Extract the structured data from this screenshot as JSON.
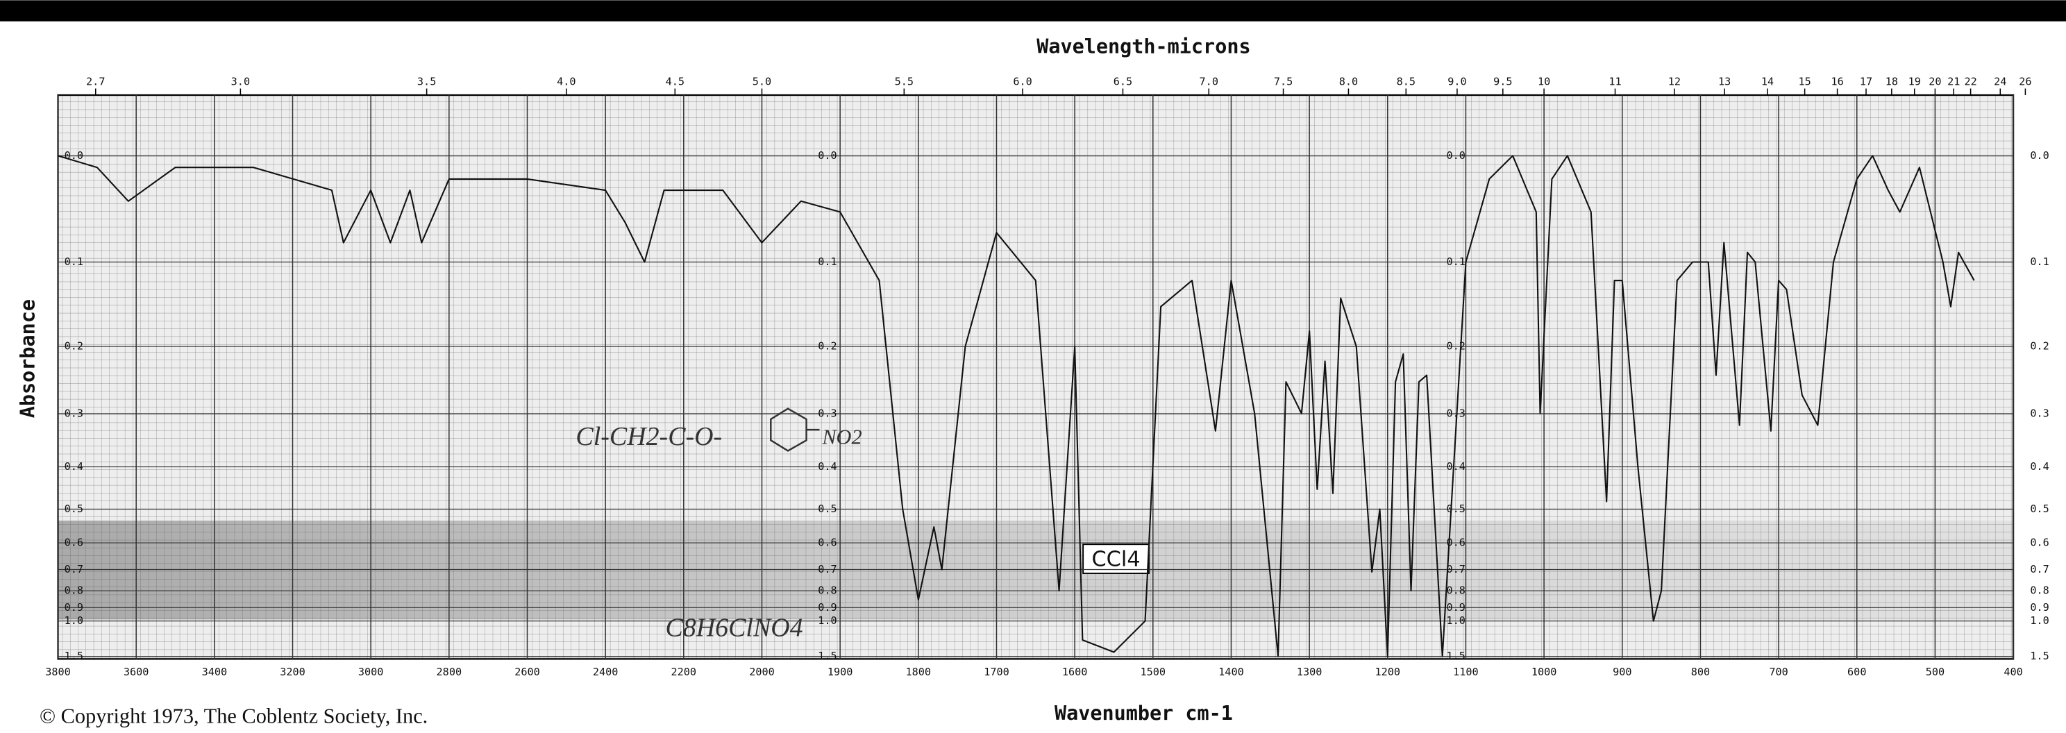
{
  "chart_data": {
    "type": "line",
    "title": "Wavelength-microns",
    "x_label": "Wavenumber cm-1",
    "y_label": "Absorbance",
    "copyright": "© Copyright 1973, The Coblentz Society, Inc.",
    "annotations": [
      "CCl4",
      "C8H6ClNO4",
      "Cl-CH2-C-O-",
      "NO2"
    ],
    "color": "#111111",
    "x": [
      3800,
      3700,
      3620,
      3500,
      3300,
      3100,
      3070,
      3000,
      2950,
      2900,
      2870,
      2800,
      2600,
      2400,
      2350,
      2300,
      2250,
      2100,
      2000,
      1950,
      1900,
      1850,
      1820,
      1800,
      1780,
      1770,
      1740,
      1700,
      1650,
      1620,
      1600,
      1590,
      1550,
      1510,
      1490,
      1450,
      1420,
      1400,
      1370,
      1340,
      1330,
      1310,
      1300,
      1290,
      1280,
      1270,
      1260,
      1240,
      1220,
      1210,
      1200,
      1190,
      1180,
      1170,
      1160,
      1150,
      1130,
      1100,
      1070,
      1040,
      1010,
      1005,
      990,
      970,
      940,
      920,
      910,
      900,
      880,
      860,
      850,
      830,
      810,
      790,
      780,
      770,
      750,
      740,
      730,
      710,
      700,
      690,
      670,
      650,
      630,
      600,
      580,
      560,
      545,
      520,
      490,
      480,
      470,
      450
    ],
    "values": [
      0.0,
      0.01,
      0.04,
      0.01,
      0.01,
      0.03,
      0.08,
      0.03,
      0.08,
      0.03,
      0.08,
      0.02,
      0.02,
      0.03,
      0.06,
      0.1,
      0.03,
      0.03,
      0.08,
      0.04,
      0.05,
      0.12,
      0.5,
      0.85,
      0.55,
      0.7,
      0.2,
      0.07,
      0.12,
      0.8,
      0.2,
      1.2,
      1.4,
      1.0,
      0.15,
      0.12,
      0.33,
      0.12,
      0.3,
      1.5,
      0.25,
      0.3,
      0.18,
      0.45,
      0.22,
      0.46,
      0.14,
      0.2,
      0.71,
      0.5,
      1.5,
      0.25,
      0.21,
      0.8,
      0.25,
      0.24,
      1.5,
      0.1,
      0.02,
      0.0,
      0.05,
      0.3,
      0.02,
      0.0,
      0.05,
      0.48,
      0.12,
      0.12,
      0.4,
      1.0,
      0.8,
      0.12,
      0.1,
      0.1,
      0.24,
      0.08,
      0.32,
      0.09,
      0.1,
      0.33,
      0.12,
      0.13,
      0.27,
      0.32,
      0.1,
      0.02,
      0.0,
      0.03,
      0.05,
      0.01,
      0.1,
      0.15,
      0.09,
      0.12
    ],
    "xlim": [
      3800,
      400
    ],
    "x_scale_break": 2000,
    "xticks": [
      3800,
      3600,
      3400,
      3200,
      3000,
      2800,
      2600,
      2400,
      2200,
      2000,
      1900,
      1800,
      1700,
      1600,
      1500,
      1400,
      1300,
      1200,
      1100,
      1000,
      900,
      800,
      700,
      600,
      500,
      400
    ],
    "top_ticks": [
      2.7,
      {
        "value": 3,
        "label": "3.0"
      },
      3.5,
      {
        "value": 4,
        "label": "4.0"
      },
      4.5,
      {
        "value": 5,
        "label": "5.0"
      },
      5.5,
      {
        "value": 6,
        "label": "6.0"
      },
      6.5,
      {
        "value": 7,
        "label": "7.0"
      },
      7.5,
      {
        "value": 8,
        "label": "8.0"
      },
      8.5,
      {
        "value": 9,
        "label": "9.0"
      },
      9.5,
      10,
      11,
      12,
      13,
      14,
      15,
      16,
      17,
      18,
      19,
      20,
      21,
      22,
      24,
      26
    ],
    "ylim": [
      0,
      1.5
    ],
    "yscale": "transmittance",
    "yticks": [
      {
        "value": 0,
        "label": "0.0"
      },
      0.1,
      0.2,
      0.3,
      0.4,
      0.5,
      0.6,
      0.7,
      0.8,
      0.9,
      {
        "value": 1,
        "label": "1.0"
      },
      1.5
    ],
    "grid": true
  }
}
